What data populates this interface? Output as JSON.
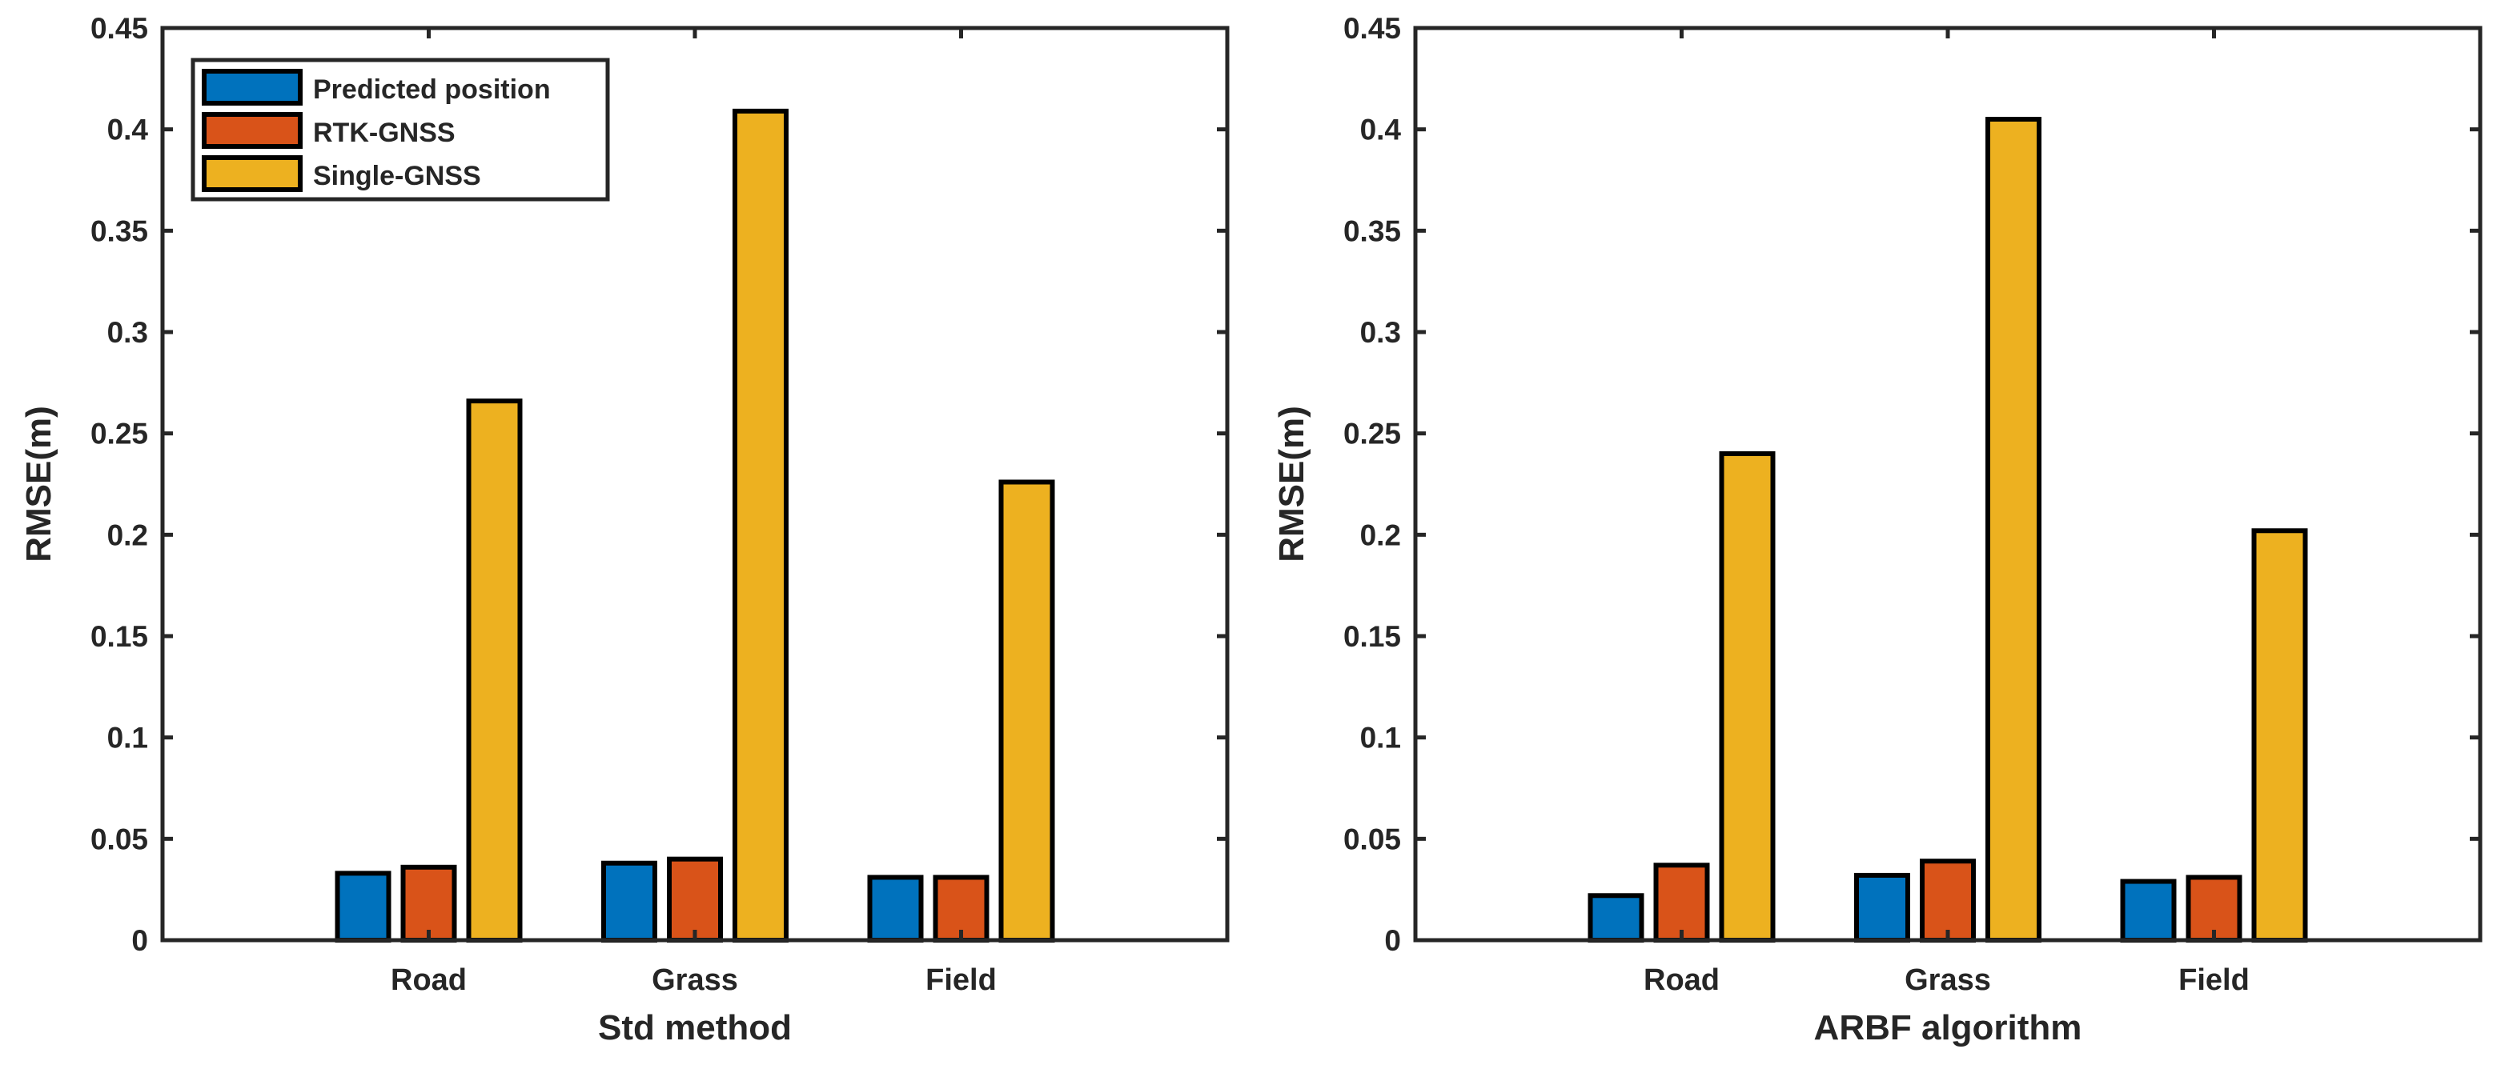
{
  "chart_data": [
    {
      "type": "bar",
      "title": "",
      "xlabel": "Std method",
      "ylabel": "RMSE(m)",
      "ylim": [
        0,
        0.45
      ],
      "yticks": [
        "0",
        "0.05",
        "0.1",
        "0.15",
        "0.2",
        "0.25",
        "0.3",
        "0.35",
        "0.4",
        "0.45"
      ],
      "categories": [
        "Road",
        "Grass",
        "Field"
      ],
      "series": [
        {
          "name": "Predicted position",
          "color": "#0072BD",
          "values": [
            0.033,
            0.038,
            0.031
          ]
        },
        {
          "name": "RTK-GNSS",
          "color": "#D95319",
          "values": [
            0.036,
            0.04,
            0.031
          ]
        },
        {
          "name": "Single-GNSS",
          "color": "#EDB120",
          "values": [
            0.266,
            0.409,
            0.226
          ]
        }
      ],
      "legend": {
        "position": "top-left",
        "entries": [
          "Predicted position",
          "RTK-GNSS",
          "Single-GNSS"
        ]
      },
      "grid": false
    },
    {
      "type": "bar",
      "title": "",
      "xlabel": "ARBF algorithm",
      "ylabel": "RMSE(m)",
      "ylim": [
        0,
        0.45
      ],
      "yticks": [
        "0",
        "0.05",
        "0.1",
        "0.15",
        "0.2",
        "0.25",
        "0.3",
        "0.35",
        "0.4",
        "0.45"
      ],
      "categories": [
        "Road",
        "Grass",
        "Field"
      ],
      "series": [
        {
          "name": "Predicted position",
          "color": "#0072BD",
          "values": [
            0.022,
            0.032,
            0.029
          ]
        },
        {
          "name": "RTK-GNSS",
          "color": "#D95319",
          "values": [
            0.037,
            0.039,
            0.031
          ]
        },
        {
          "name": "Single-GNSS",
          "color": "#EDB120",
          "values": [
            0.24,
            0.405,
            0.202
          ]
        }
      ],
      "legend": null,
      "grid": false
    }
  ]
}
